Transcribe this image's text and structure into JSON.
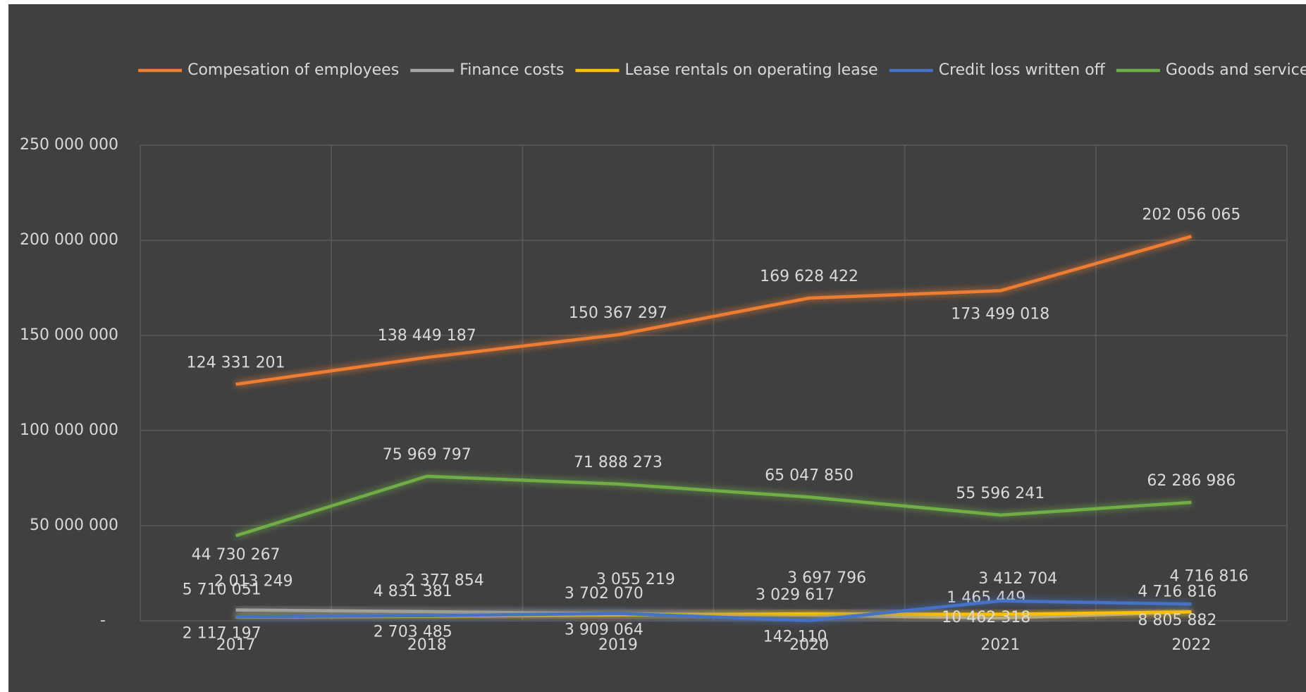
{
  "chart_data": {
    "type": "line",
    "categories": [
      "2017",
      "2018",
      "2019",
      "2020",
      "2021",
      "2022"
    ],
    "series": [
      {
        "name": "Compesation of employees",
        "color": "#ed7d31",
        "values": [
          124331201,
          138449187,
          150367297,
          169628422,
          173499018,
          202056065
        ],
        "value_labels": [
          "124 331 201",
          "138 449 187",
          "150 367 297",
          "169 628 422",
          "173 499 018",
          "202 056 065"
        ]
      },
      {
        "name": "Finance costs",
        "color": "#a5a5a5",
        "values": [
          5710051,
          4831381,
          3702070,
          3029617,
          1465449,
          4716816
        ],
        "value_labels": [
          "5 710 051",
          "4 831 381",
          "3 702 070",
          "3 029 617",
          "1 465 449",
          "4 716 816"
        ]
      },
      {
        "name": "Lease rentals on operating lease",
        "color": "#ffc000",
        "values": [
          2013249,
          2377854,
          3055219,
          3697796,
          3412704,
          4716816
        ],
        "value_labels": [
          "2 013 249",
          "2 377 854",
          "3 055 219",
          "3 697 796",
          "3 412 704",
          "4 716 816"
        ]
      },
      {
        "name": "Credit loss written off",
        "color": "#4472c4",
        "values": [
          2117197,
          2703485,
          3909064,
          142110,
          10462318,
          8805882
        ],
        "value_labels": [
          "2 117 197",
          "2 703 485",
          "3 909 064",
          "142 110",
          "10 462 318",
          "8 805 882"
        ]
      },
      {
        "name": "Goods and services",
        "color": "#70ad47",
        "values": [
          44730267,
          75969797,
          71888273,
          65047850,
          55596241,
          62286986
        ],
        "value_labels": [
          "44 730 267",
          "75 969 797",
          "71 888 273",
          "65 047 850",
          "55 596 241",
          "62 286 986"
        ]
      }
    ],
    "ylim": [
      0,
      250000000
    ],
    "yticks": [
      {
        "value": 0,
        "label": "-"
      },
      {
        "value": 50000000,
        "label": "50 000 000"
      },
      {
        "value": 100000000,
        "label": "100 000 000"
      },
      {
        "value": 150000000,
        "label": "150 000 000"
      },
      {
        "value": 200000000,
        "label": "200 000 000"
      },
      {
        "value": 250000000,
        "label": "250 000 000"
      }
    ],
    "grid": true,
    "legend": "top"
  }
}
